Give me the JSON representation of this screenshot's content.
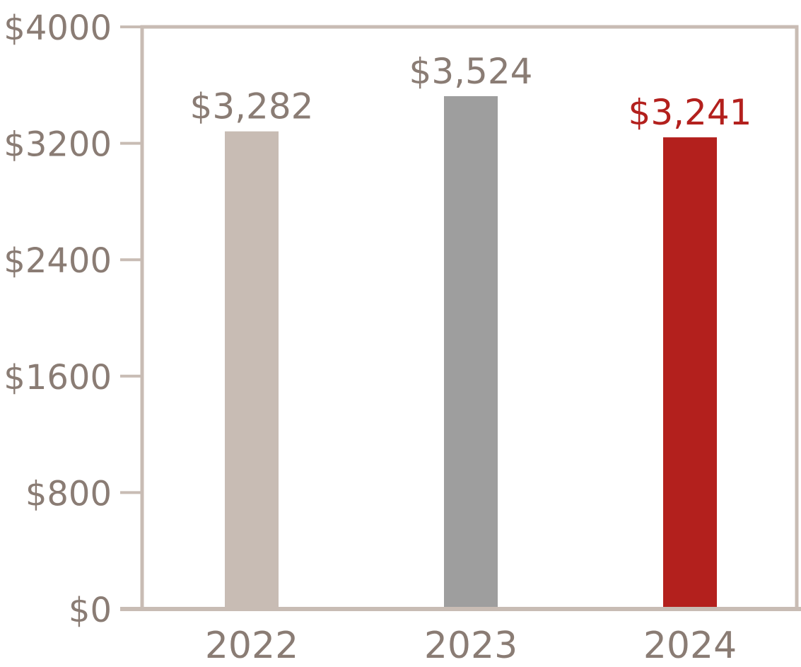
{
  "chart_data": {
    "type": "bar",
    "title": "",
    "xlabel": "",
    "ylabel": "",
    "categories": [
      "2022",
      "2023",
      "2024"
    ],
    "values": [
      3282,
      3524,
      3241
    ],
    "value_labels": [
      "$3,282",
      "$3,524",
      "$3,241"
    ],
    "bar_colors": [
      "#c8bcb4",
      "#9e9e9e",
      "#b3201d"
    ],
    "value_label_colors": [
      "#8a7c74",
      "#8a7c74",
      "#b3201d"
    ],
    "ylim": [
      0,
      4000
    ],
    "yticks": [
      0,
      800,
      1600,
      2400,
      3200,
      4000
    ],
    "ytick_labels": [
      "$0",
      "$800",
      "$1600",
      "$2400",
      "$3200",
      "$4000"
    ],
    "grid": false,
    "axis_color": "#c8bcb4",
    "text_color": "#8a7c74"
  }
}
